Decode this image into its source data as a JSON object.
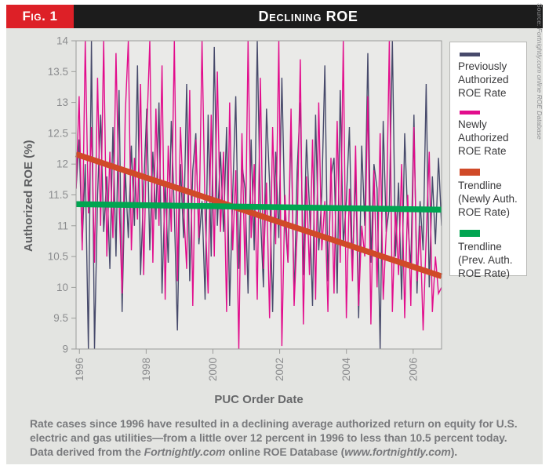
{
  "figure": {
    "label": "Fig. 1",
    "title": "Declining ROE"
  },
  "axes": {
    "y_label": "Authorized ROE (%)",
    "x_label": "PUC Order Date"
  },
  "legend": {
    "items": [
      {
        "label": "Previously Authorized ROE Rate",
        "color": "#474a6b",
        "thick": 5
      },
      {
        "label": "Newly Authorized ROE Rate",
        "color": "#e20d8c",
        "thick": 5
      },
      {
        "label": "Trendline (Newly Auth. ROE Rate)",
        "color": "#d04a28",
        "thick": 9
      },
      {
        "label": "Trendline (Prev. Auth. ROE Rate)",
        "color": "#00a551",
        "thick": 9
      }
    ]
  },
  "caption": {
    "segments": [
      {
        "text": "Rate cases since 1996 have resulted in a declining average authorized return on equity for U.S. electric and gas utilities—from a little over 12 percent in 1996 to less than 10.5 percent today. Data derived from the ",
        "italic": false
      },
      {
        "text": "Fortnightly.com",
        "italic": true
      },
      {
        "text": " online ROE Database (",
        "italic": false
      },
      {
        "text": "www.fortnightly.com",
        "italic": true
      },
      {
        "text": ").",
        "italic": false
      }
    ]
  },
  "source_note": {
    "prefix": "Source: ",
    "text": "Fortnightly.com online ROE Database"
  },
  "colors": {
    "header_red": "#dd2027",
    "header_black": "#1c1c1c",
    "panel_bg": "#e3e4e1",
    "plot_bg": "#eaeae8",
    "axis": "#9b9c9a",
    "tick_text": "#8b8c8e",
    "prev_auth": "#474a6b",
    "newly_auth": "#e20d8c",
    "trend_newly": "#d04a28",
    "trend_prev": "#00a551"
  },
  "chart_data": {
    "type": "line",
    "title": "Declining ROE",
    "xlabel": "PUC Order Date",
    "ylabel": "Authorized ROE (%)",
    "xlim": [
      1995.9,
      2006.85
    ],
    "ylim": [
      9,
      14
    ],
    "grid": false,
    "legend_position": "right",
    "x_ticks": [
      1996,
      1998,
      2000,
      2002,
      2004,
      2006
    ],
    "y_ticks": [
      9,
      9.5,
      10,
      10.5,
      11,
      11.5,
      12,
      12.5,
      13,
      13.5,
      14
    ],
    "series": [
      {
        "name": "Previously Authorized ROE Rate",
        "color": "#474a6b",
        "width": 1.4,
        "values": [
          11.6,
          12.4,
          10.7,
          12,
          9,
          14,
          9,
          11.5,
          12.8,
          10.9,
          11.8,
          10.3,
          12.6,
          10.5,
          13.2,
          9.6,
          11.9,
          10.8,
          12.3,
          11,
          13.6,
          10.2,
          11.6,
          12.9,
          10.6,
          12.2,
          11.1,
          13,
          9.9,
          11.7,
          10.4,
          12.7,
          11.2,
          9.3,
          12,
          10.8,
          13.3,
          10.1,
          11.9,
          12.5,
          10.7,
          11.4,
          9.8,
          12.8,
          10.5,
          13.9,
          11,
          12.2,
          10.9,
          12.6,
          9.7,
          11.5,
          13.1,
          10.3,
          12,
          11.6,
          9.9,
          12.4,
          10.6,
          14,
          11.2,
          10,
          12.9,
          11.7,
          9.6,
          12.2,
          10.8,
          13.4,
          11.1,
          10.4,
          12.6,
          9.8,
          11.9,
          13,
          10.2,
          12.4,
          11.3,
          9.7,
          12.8,
          10.6,
          11.5,
          13.6,
          10.1,
          11.8,
          12.1,
          9.9,
          13.2,
          10.7,
          11.4,
          12.6,
          10.3,
          11.9,
          9.5,
          12.3,
          11,
          13.8,
          10.4,
          12,
          11.6,
          9,
          12.7,
          10.9,
          11.3,
          14,
          10.5,
          11.7,
          9.8,
          12.5,
          11.1,
          10.3,
          12.8,
          9.9,
          11.4,
          10.6,
          13.3,
          10,
          11.8,
          10.7,
          12.1,
          11
        ]
      },
      {
        "name": "Newly Authorized ROE Rate",
        "color": "#e20d8c",
        "width": 1.4,
        "values": [
          11.6,
          13.1,
          10.6,
          14,
          11.2,
          12.6,
          10.4,
          13.4,
          11,
          14,
          10.5,
          12.2,
          10.8,
          13.8,
          11.4,
          9.9,
          12.8,
          14,
          10.6,
          12.1,
          11.1,
          13.3,
          10.2,
          12.5,
          14,
          10.4,
          12.9,
          11,
          13.6,
          9.8,
          12.3,
          10.9,
          14,
          10.1,
          12.6,
          11.3,
          10.3,
          13.2,
          9.7,
          12.4,
          10.8,
          14,
          11.2,
          9.9,
          12.8,
          10.5,
          13.5,
          10.9,
          12.2,
          9.6,
          13,
          10.6,
          11.9,
          9,
          12.5,
          10.2,
          14,
          10.8,
          12,
          9.8,
          13.4,
          10.3,
          11.7,
          9.5,
          12.6,
          10.7,
          14,
          9.05,
          11.5,
          10.4,
          12.9,
          9.7,
          10.9,
          13.7,
          9.4,
          11.8,
          10.2,
          12.4,
          9.8,
          13,
          10.6,
          11.4,
          9.6,
          12.1,
          9.9,
          12.7,
          10.4,
          14,
          9.5,
          11.6,
          10.1,
          12.3,
          9.7,
          11,
          10.5,
          13.1,
          9.4,
          11.9,
          10,
          12.5,
          9.8,
          10.9,
          14,
          9.6,
          11.3,
          10.2,
          12,
          9.5,
          11.5,
          9.7,
          12.6,
          10.1,
          11,
          9.3,
          10.8,
          12.2,
          9.6,
          10.5,
          9.9,
          10
        ]
      }
    ],
    "trendlines": [
      {
        "name": "Trendline (Newly Auth. ROE Rate)",
        "color": "#d04a28",
        "width": 7.5,
        "from": [
          1995.9,
          12.16
        ],
        "to": [
          2006.85,
          10.18
        ]
      },
      {
        "name": "Trendline (Prev. Auth. ROE Rate)",
        "color": "#00a551",
        "width": 7.5,
        "from": [
          1995.9,
          11.35
        ],
        "to": [
          2006.85,
          11.26
        ]
      }
    ]
  }
}
